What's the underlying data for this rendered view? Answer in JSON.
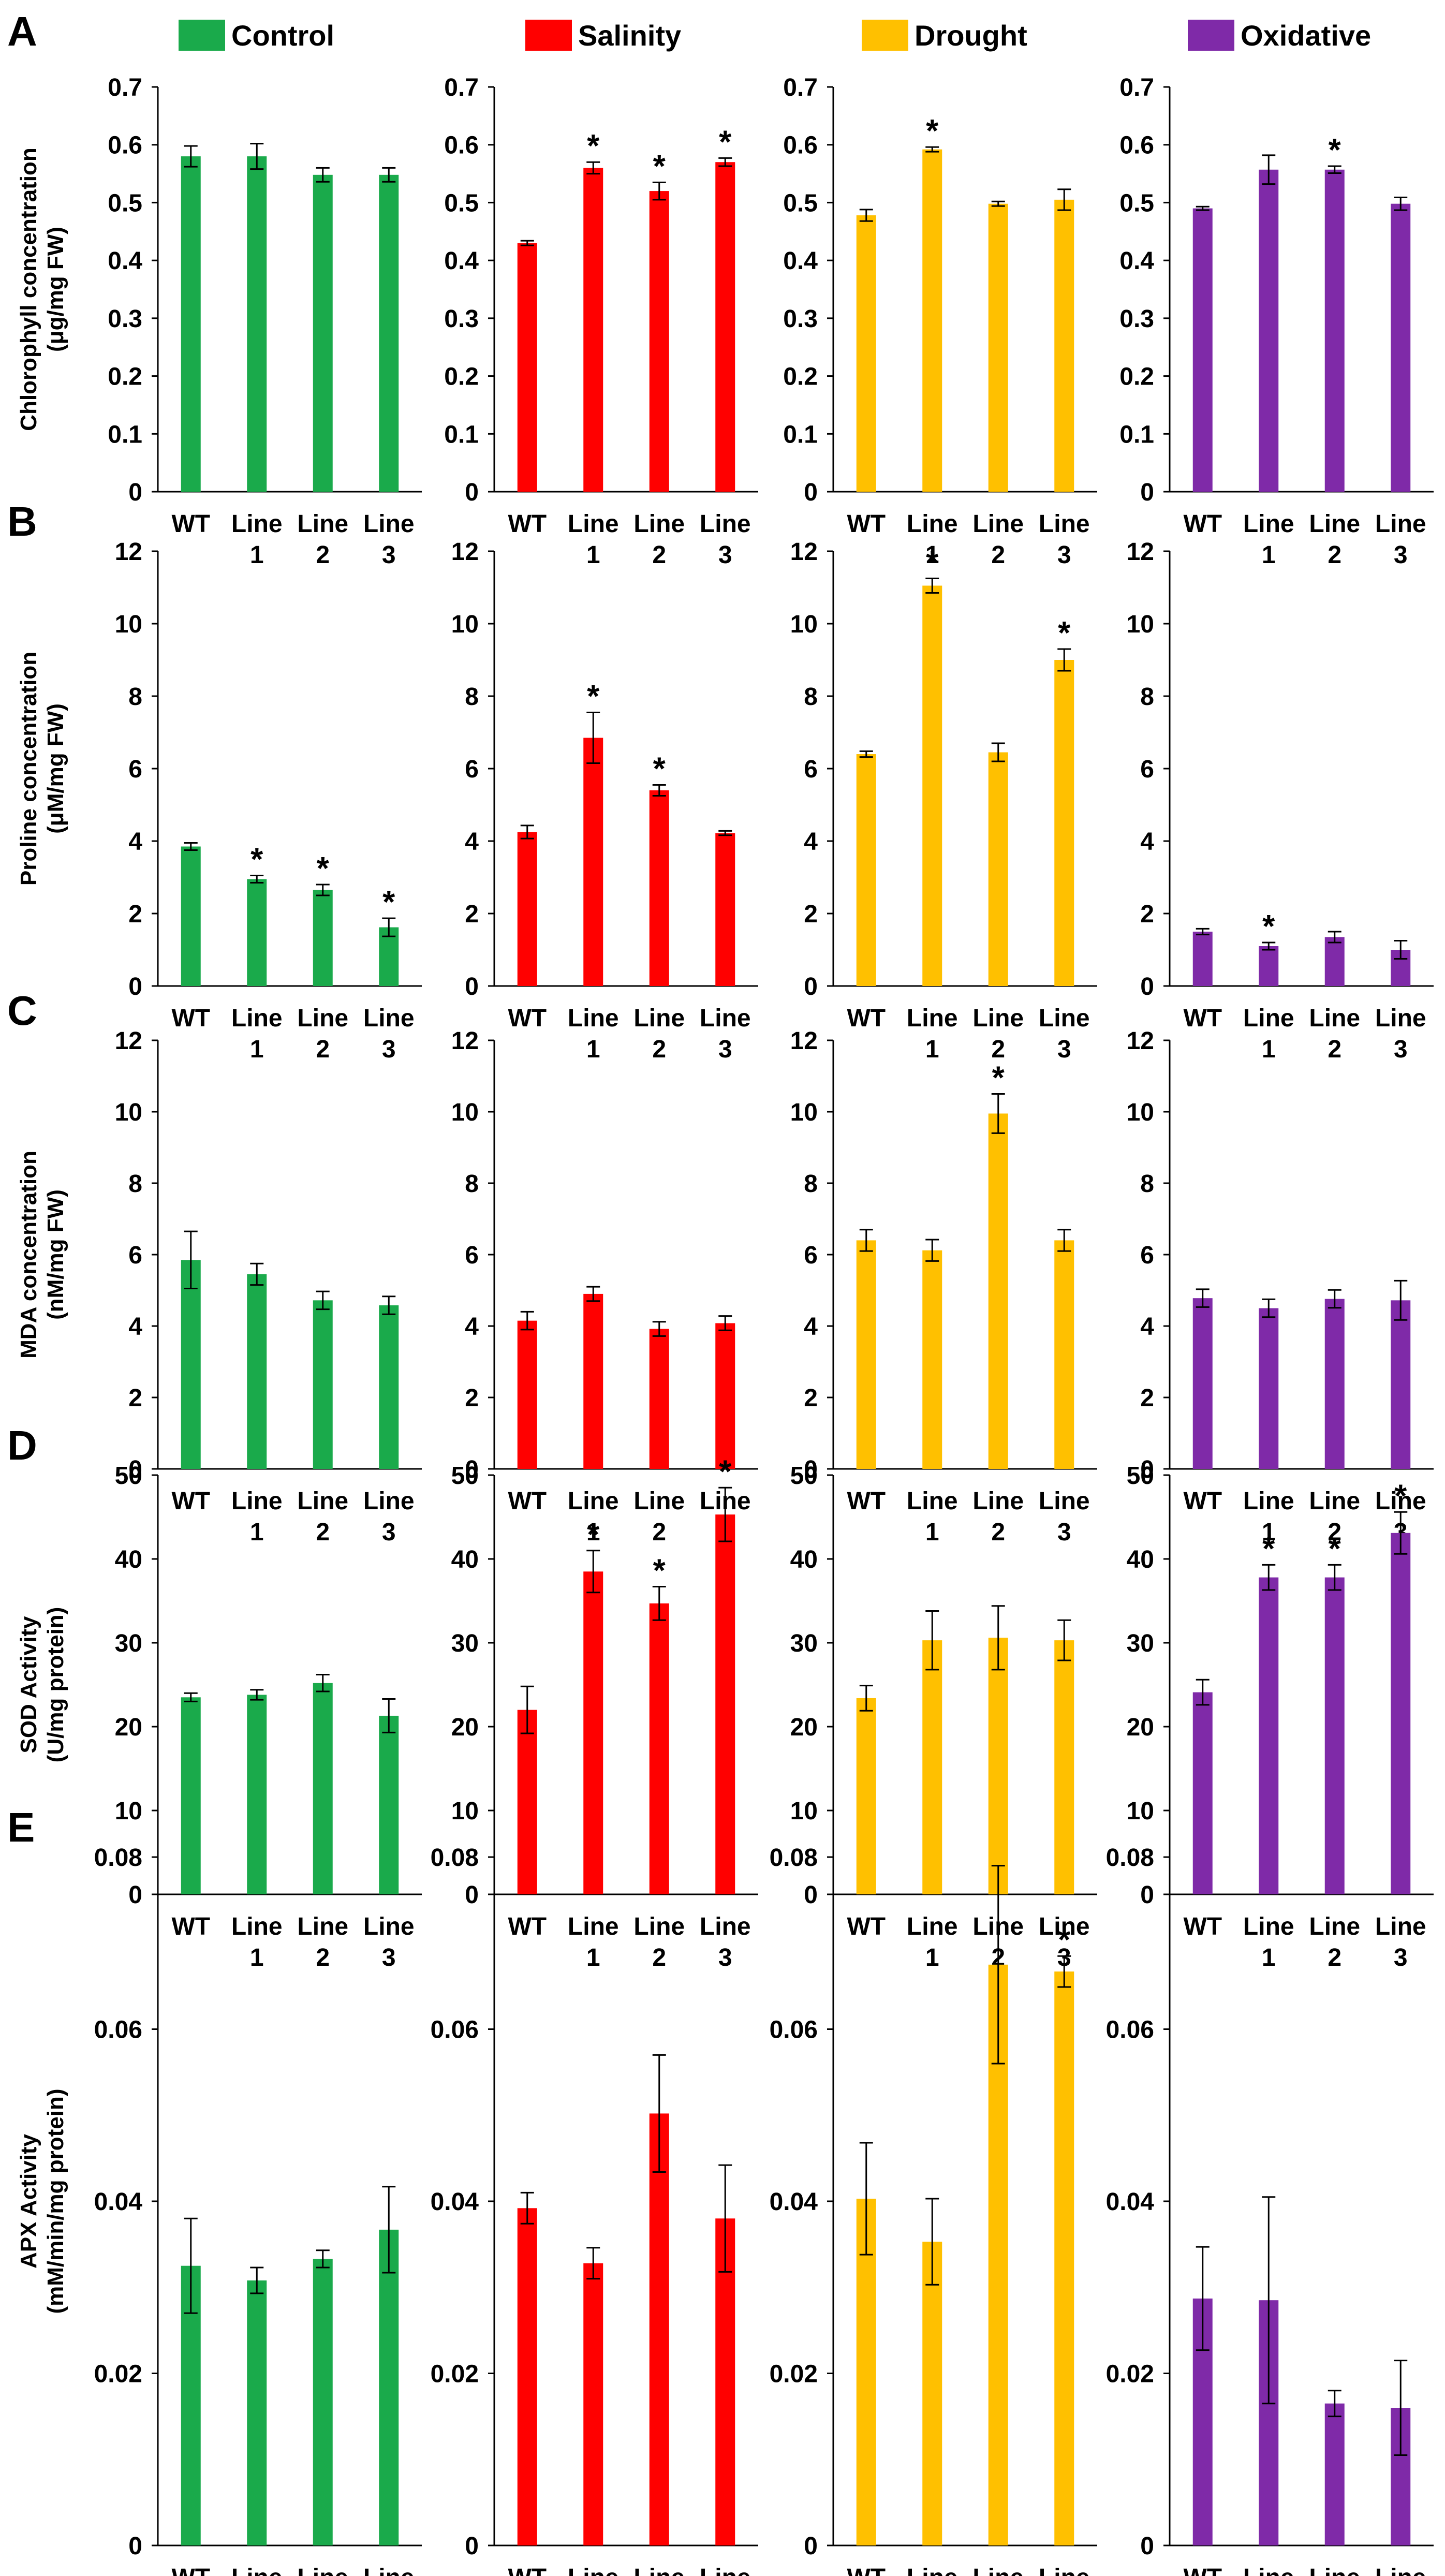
{
  "legend": [
    {
      "label": "Control",
      "color": "#1aaa4b"
    },
    {
      "label": "Salinity",
      "color": "#ff0000"
    },
    {
      "label": "Drought",
      "color": "#ffc000"
    },
    {
      "label": "Oxidative",
      "color": "#7f2aa8"
    }
  ],
  "categories": [
    {
      "line1": "WT",
      "line2": ""
    },
    {
      "line1": "Line",
      "line2": "1"
    },
    {
      "line1": "Line",
      "line2": "2"
    },
    {
      "line1": "Line",
      "line2": "3"
    }
  ],
  "sig_mark": "*",
  "chart_data": [
    {
      "type": "bar",
      "panel_label": "A",
      "ylabel_line1": "Chlorophyll concentration",
      "ylabel_line2": "(μg/mg FW)",
      "ylim": [
        0,
        0.7
      ],
      "yticks": [
        0,
        0.1,
        0.2,
        0.3,
        0.4,
        0.5,
        0.6,
        0.7
      ],
      "ytick_labels": [
        "0",
        "0.1",
        "0.2",
        "0.3",
        "0.4",
        "0.5",
        "0.6",
        "0.7"
      ],
      "series": [
        {
          "name": "Control",
          "values": [
            0.58,
            0.58,
            0.548,
            0.548
          ],
          "errors": [
            0.018,
            0.022,
            0.012,
            0.012
          ],
          "sig": [
            false,
            false,
            false,
            false
          ]
        },
        {
          "name": "Salinity",
          "values": [
            0.43,
            0.56,
            0.52,
            0.57
          ],
          "errors": [
            0.004,
            0.01,
            0.015,
            0.007
          ],
          "sig": [
            false,
            true,
            true,
            true
          ]
        },
        {
          "name": "Drought",
          "values": [
            0.478,
            0.592,
            0.498,
            0.505
          ],
          "errors": [
            0.01,
            0.004,
            0.004,
            0.018
          ],
          "sig": [
            false,
            true,
            false,
            false
          ]
        },
        {
          "name": "Oxidative",
          "values": [
            0.49,
            0.557,
            0.557,
            0.498
          ],
          "errors": [
            0.003,
            0.025,
            0.006,
            0.011
          ],
          "sig": [
            false,
            false,
            true,
            false
          ]
        }
      ]
    },
    {
      "type": "bar",
      "panel_label": "B",
      "ylabel_line1": "Proline concentration",
      "ylabel_line2": "(μM/mg FW)",
      "ylim": [
        0,
        12
      ],
      "yticks": [
        0,
        2,
        4,
        6,
        8,
        10,
        12
      ],
      "ytick_labels": [
        "0",
        "2",
        "4",
        "6",
        "8",
        "10",
        "12"
      ],
      "series": [
        {
          "name": "Control",
          "values": [
            3.85,
            2.95,
            2.65,
            1.62
          ],
          "errors": [
            0.1,
            0.1,
            0.15,
            0.25
          ],
          "sig": [
            false,
            true,
            true,
            true
          ]
        },
        {
          "name": "Salinity",
          "values": [
            4.25,
            6.85,
            5.4,
            4.22
          ],
          "errors": [
            0.18,
            0.7,
            0.15,
            0.06
          ],
          "sig": [
            false,
            true,
            true,
            false
          ]
        },
        {
          "name": "Drought",
          "values": [
            6.4,
            11.05,
            6.45,
            9.0
          ],
          "errors": [
            0.08,
            0.2,
            0.25,
            0.3
          ],
          "sig": [
            false,
            true,
            false,
            true
          ]
        },
        {
          "name": "Oxidative",
          "values": [
            1.5,
            1.1,
            1.35,
            1.0
          ],
          "errors": [
            0.08,
            0.1,
            0.15,
            0.25
          ],
          "sig": [
            false,
            true,
            false,
            false
          ]
        }
      ]
    },
    {
      "type": "bar",
      "panel_label": "C",
      "ylabel_line1": "MDA concentration",
      "ylabel_line2": "(nM/mg FW)",
      "ylim": [
        0,
        12
      ],
      "yticks": [
        0,
        2,
        4,
        6,
        8,
        10,
        12
      ],
      "ytick_labels": [
        "0",
        "2",
        "4",
        "6",
        "8",
        "10",
        "12"
      ],
      "series": [
        {
          "name": "Control",
          "values": [
            5.85,
            5.45,
            4.72,
            4.58
          ],
          "errors": [
            0.8,
            0.3,
            0.25,
            0.25
          ],
          "sig": [
            false,
            false,
            false,
            false
          ]
        },
        {
          "name": "Salinity",
          "values": [
            4.15,
            4.9,
            3.92,
            4.08
          ],
          "errors": [
            0.25,
            0.2,
            0.2,
            0.2
          ],
          "sig": [
            false,
            false,
            false,
            false
          ]
        },
        {
          "name": "Drought",
          "values": [
            6.4,
            6.12,
            9.95,
            6.4
          ],
          "errors": [
            0.3,
            0.3,
            0.55,
            0.3
          ],
          "sig": [
            false,
            false,
            true,
            false
          ]
        },
        {
          "name": "Oxidative",
          "values": [
            4.78,
            4.5,
            4.76,
            4.72
          ],
          "errors": [
            0.25,
            0.25,
            0.25,
            0.55
          ],
          "sig": [
            false,
            false,
            false,
            false
          ]
        }
      ]
    },
    {
      "type": "bar",
      "panel_label": "D",
      "ylabel_line1": "SOD Activity",
      "ylabel_line2": "(U/mg protein)",
      "ylim": [
        0,
        50
      ],
      "yticks": [
        0,
        10,
        20,
        30,
        40,
        50
      ],
      "ytick_labels": [
        "0",
        "10",
        "20",
        "30",
        "40",
        "50"
      ],
      "series": [
        {
          "name": "Control",
          "values": [
            23.5,
            23.8,
            25.2,
            21.3
          ],
          "errors": [
            0.5,
            0.6,
            1.0,
            2.0
          ],
          "sig": [
            false,
            false,
            false,
            false
          ]
        },
        {
          "name": "Salinity",
          "values": [
            22.0,
            38.5,
            34.7,
            45.3
          ],
          "errors": [
            2.8,
            2.5,
            2.0,
            3.2
          ],
          "sig": [
            false,
            true,
            true,
            true
          ]
        },
        {
          "name": "Drought",
          "values": [
            23.4,
            30.3,
            30.6,
            30.3
          ],
          "errors": [
            1.5,
            3.5,
            3.8,
            2.4
          ],
          "sig": [
            false,
            false,
            false,
            false
          ]
        },
        {
          "name": "Oxidative",
          "values": [
            24.1,
            37.8,
            37.8,
            43.1
          ],
          "errors": [
            1.5,
            1.5,
            1.5,
            2.5
          ],
          "sig": [
            false,
            true,
            true,
            true
          ]
        }
      ]
    },
    {
      "type": "bar",
      "panel_label": "E",
      "ylabel_line1": "APX Activity",
      "ylabel_line2": "(mM/min/mg protein)",
      "ylim": [
        0,
        0.08
      ],
      "yticks": [
        0,
        0.02,
        0.04,
        0.06,
        0.08
      ],
      "ytick_labels": [
        "0",
        "0.02",
        "0.04",
        "0.06",
        "0.08"
      ],
      "series": [
        {
          "name": "Control",
          "values": [
            0.0325,
            0.0308,
            0.0333,
            0.0367
          ],
          "errors": [
            0.0055,
            0.0015,
            0.001,
            0.005
          ],
          "sig": [
            false,
            false,
            false,
            false
          ]
        },
        {
          "name": "Salinity",
          "values": [
            0.0392,
            0.0328,
            0.0502,
            0.038
          ],
          "errors": [
            0.0018,
            0.0018,
            0.0068,
            0.0062
          ],
          "sig": [
            false,
            false,
            false,
            false
          ]
        },
        {
          "name": "Drought",
          "values": [
            0.0403,
            0.0353,
            0.0675,
            0.0667
          ],
          "errors": [
            0.0065,
            0.005,
            0.0115,
            0.0018
          ],
          "sig": [
            false,
            false,
            false,
            true
          ]
        },
        {
          "name": "Oxidative",
          "values": [
            0.0287,
            0.0285,
            0.0165,
            0.016
          ],
          "errors": [
            0.006,
            0.012,
            0.0015,
            0.0055
          ],
          "sig": [
            false,
            false,
            false,
            false
          ]
        }
      ]
    }
  ]
}
